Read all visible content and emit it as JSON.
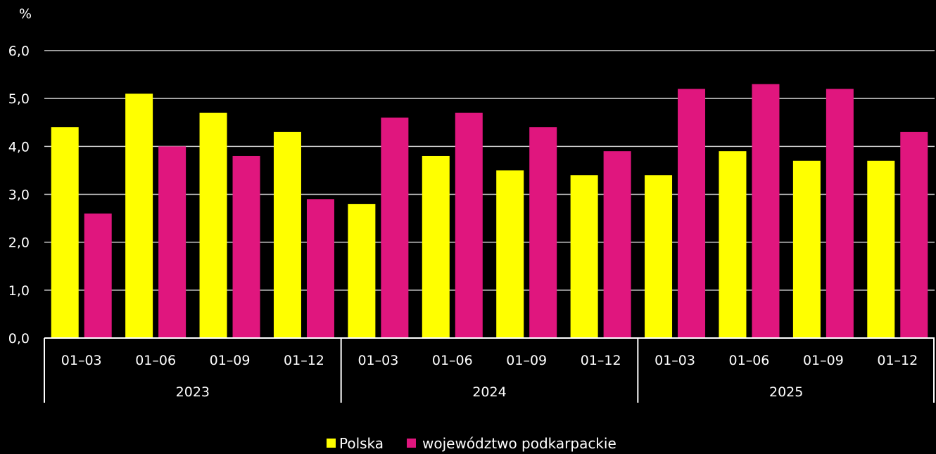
{
  "chart_data": {
    "type": "bar",
    "ylabel": "%",
    "ylim": [
      0,
      6
    ],
    "yticks": [
      "0,0",
      "1,0",
      "2,0",
      "3,0",
      "4,0",
      "5,0",
      "6,0"
    ],
    "grid": true,
    "legend_position": "bottom-center",
    "groups": [
      {
        "label": "2023",
        "categories": [
          "01–03",
          "01–06",
          "01–09",
          "01–12"
        ]
      },
      {
        "label": "2024",
        "categories": [
          "01–03",
          "01–06",
          "01–09",
          "01–12"
        ]
      },
      {
        "label": "2025",
        "categories": [
          "01–03",
          "01–06",
          "01–09",
          "01–12"
        ]
      }
    ],
    "series": [
      {
        "name": "Polska",
        "color": "#ffff00",
        "values": [
          4.4,
          5.1,
          4.7,
          4.3,
          2.8,
          3.8,
          3.5,
          3.4,
          3.4,
          3.9,
          3.7,
          3.7
        ]
      },
      {
        "name": "województwo podkarpackie",
        "color": "#e0167e",
        "values": [
          2.6,
          4.0,
          3.8,
          2.9,
          4.6,
          4.7,
          4.4,
          3.9,
          5.2,
          5.3,
          5.2,
          4.3
        ]
      }
    ]
  }
}
